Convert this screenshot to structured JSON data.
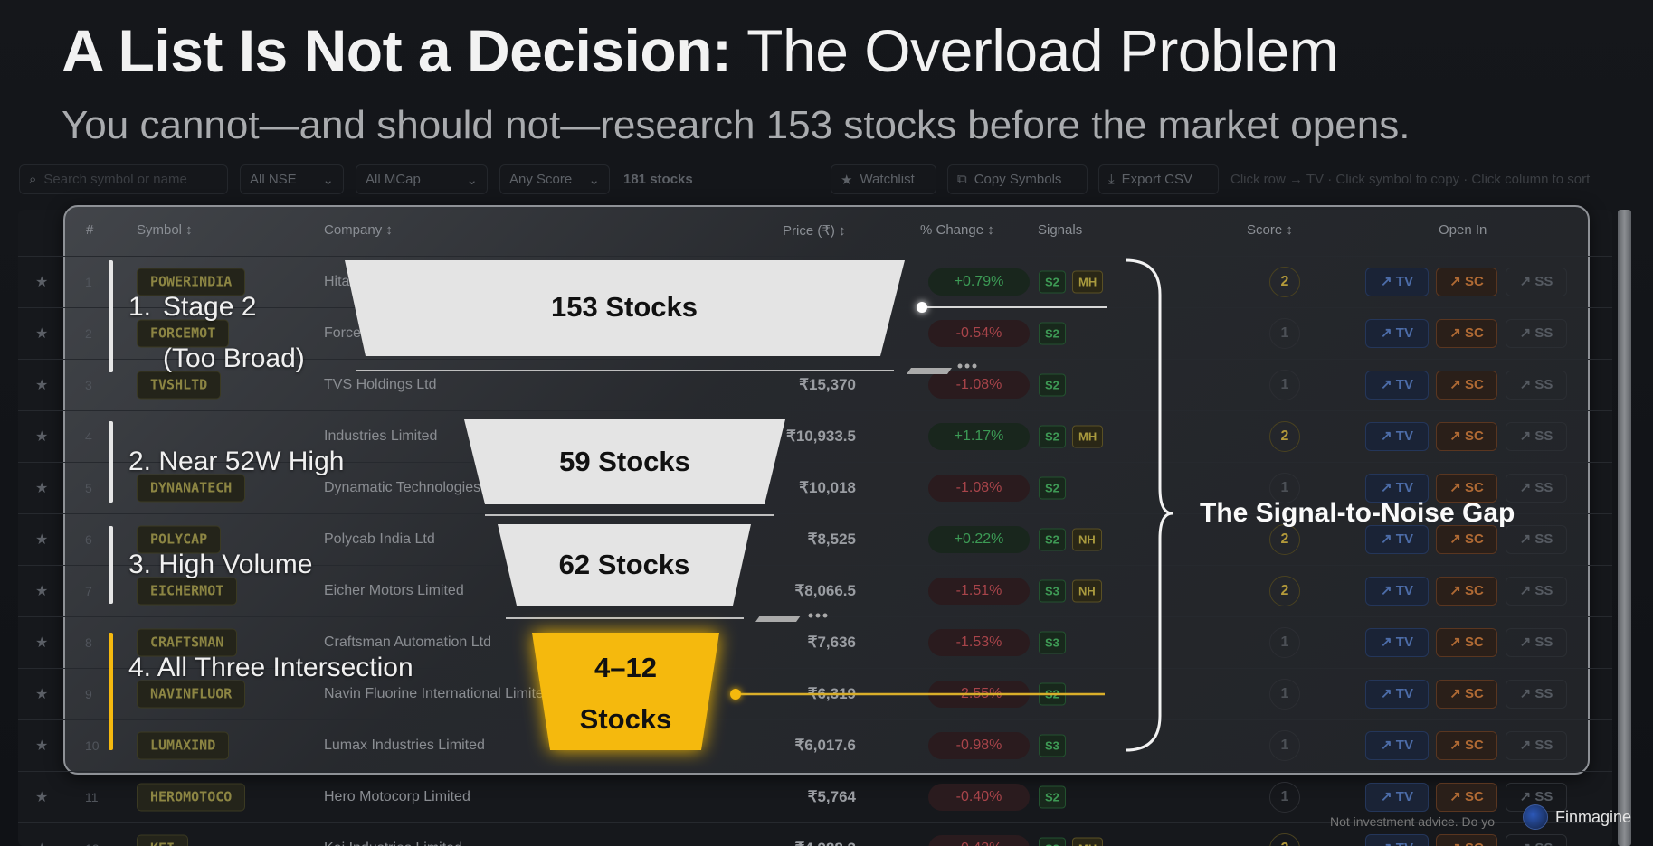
{
  "slide": {
    "title_bold": "A List Is Not a Decision:",
    "title_light": "The Overload Problem",
    "subtitle": "You cannot—and should not—research 153 stocks before the market opens."
  },
  "toolbar": {
    "search_placeholder": "Search symbol or name",
    "exchange_select": "All NSE",
    "mcap_select": "All MCap",
    "score_select": "Any Score",
    "count": "181 stocks",
    "watchlist": "Watchlist",
    "copy_symbols": "Copy Symbols",
    "export_csv": "Export CSV",
    "hint": "Click row → TV · Click symbol to copy · Click column to sort"
  },
  "table": {
    "headers": {
      "num": "#",
      "symbol": "Symbol ↕",
      "company": "Company ↕",
      "price": "Price (₹) ↕",
      "change": "% Change ↕",
      "signals": "Signals",
      "score": "Score ↕",
      "open_in": "Open In"
    },
    "open_buttons": [
      "TV",
      "SC",
      "SS"
    ],
    "rows": [
      {
        "n": "1",
        "symbol": "POWERINDIA",
        "company": "Hitachi Energy India Ltd",
        "price": "",
        "change": "+0.79%",
        "signals": [
          "S2",
          "MH"
        ],
        "score": "2"
      },
      {
        "n": "2",
        "symbol": "FORCEMOT",
        "company": "Force Motors Ltd",
        "price": "",
        "change": "-0.54%",
        "signals": [
          "S2"
        ],
        "score": "1"
      },
      {
        "n": "3",
        "symbol": "TVSHLTD",
        "company": "TVS Holdings Ltd",
        "price": "₹15,370",
        "change": "-1.08%",
        "signals": [
          "S2"
        ],
        "score": "1"
      },
      {
        "n": "4",
        "symbol": "",
        "company": "Industries Limited",
        "price": "₹10,933.5",
        "change": "+1.17%",
        "signals": [
          "S2",
          "MH"
        ],
        "score": "2"
      },
      {
        "n": "5",
        "symbol": "DYNANATECH",
        "company": "Dynamatic Technologies Limited",
        "price": "₹10,018",
        "change": "-1.08%",
        "signals": [
          "S2"
        ],
        "score": "1"
      },
      {
        "n": "6",
        "symbol": "POLYCAP",
        "company": "Polycab India Ltd",
        "price": "₹8,525",
        "change": "+0.22%",
        "signals": [
          "S2",
          "NH"
        ],
        "score": "2"
      },
      {
        "n": "7",
        "symbol": "EICHERMOT",
        "company": "Eicher Motors Limited",
        "price": "₹8,066.5",
        "change": "-1.51%",
        "signals": [
          "S3",
          "NH"
        ],
        "score": "2"
      },
      {
        "n": "8",
        "symbol": "CRAFTSMAN",
        "company": "Craftsman Automation Ltd",
        "price": "₹7,636",
        "change": "-1.53%",
        "signals": [
          "S3"
        ],
        "score": "1"
      },
      {
        "n": "9",
        "symbol": "NAVINFLUOR",
        "company": "Navin Fluorine International Limited",
        "price": "₹6,319",
        "change": "-2.55%",
        "signals": [
          "S2"
        ],
        "score": "1"
      },
      {
        "n": "10",
        "symbol": "LUMAXIND",
        "company": "Lumax Industries Limited",
        "price": "₹6,017.6",
        "change": "-0.98%",
        "signals": [
          "S3"
        ],
        "score": "1"
      },
      {
        "n": "11",
        "symbol": "HEROMOTOCO",
        "company": "Hero Motocorp Limited",
        "price": "₹5,764",
        "change": "-0.40%",
        "signals": [
          "S2"
        ],
        "score": "1"
      },
      {
        "n": "12",
        "symbol": "KEI",
        "company": "Kei Industries Limited",
        "price": "₹4,988.2",
        "change": "-0.42%",
        "signals": [
          "S2",
          "MH"
        ],
        "score": "2"
      }
    ]
  },
  "funnel": {
    "stages": [
      {
        "num": "1.",
        "label_line1": "Stage 2",
        "label_line2": "(Too Broad)",
        "value": "153 Stocks"
      },
      {
        "num": "2.",
        "label_line1": "Near 52W High",
        "value": "59 Stocks"
      },
      {
        "num": "3.",
        "label_line1": "High Volume",
        "value": "62 Stocks"
      },
      {
        "num": "4.",
        "label_line1": "All Three Intersection",
        "value_line1": "4–12",
        "value_line2": "Stocks"
      }
    ],
    "gap_label": "The Signal-to-Noise Gap",
    "colors": {
      "stage": "#e4e4e4",
      "highlight": "#f5b90f"
    }
  },
  "branding": {
    "logo_text": "Finmagine",
    "disclaimer": "Not investment advice. Do yo"
  }
}
